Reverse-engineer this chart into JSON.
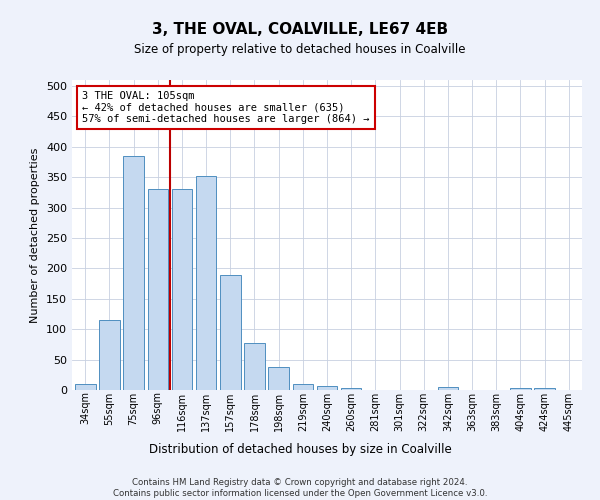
{
  "title": "3, THE OVAL, COALVILLE, LE67 4EB",
  "subtitle": "Size of property relative to detached houses in Coalville",
  "xlabel": "Distribution of detached houses by size in Coalville",
  "ylabel": "Number of detached properties",
  "bar_labels": [
    "34sqm",
    "55sqm",
    "75sqm",
    "96sqm",
    "116sqm",
    "137sqm",
    "157sqm",
    "178sqm",
    "198sqm",
    "219sqm",
    "240sqm",
    "260sqm",
    "281sqm",
    "301sqm",
    "322sqm",
    "342sqm",
    "363sqm",
    "383sqm",
    "404sqm",
    "424sqm",
    "445sqm"
  ],
  "bar_values": [
    10,
    115,
    385,
    330,
    330,
    352,
    190,
    77,
    38,
    10,
    7,
    4,
    0,
    0,
    0,
    5,
    0,
    0,
    4,
    4,
    0
  ],
  "bar_color": "#c5d9f0",
  "bar_edge_color": "#4f8fc0",
  "vline_color": "#bb0000",
  "annotation_text": "3 THE OVAL: 105sqm\n← 42% of detached houses are smaller (635)\n57% of semi-detached houses are larger (864) →",
  "annotation_box_color": "#ffffff",
  "annotation_box_edge_color": "#cc0000",
  "ylim": [
    0,
    510
  ],
  "yticks": [
    0,
    50,
    100,
    150,
    200,
    250,
    300,
    350,
    400,
    450,
    500
  ],
  "footnote": "Contains HM Land Registry data © Crown copyright and database right 2024.\nContains public sector information licensed under the Open Government Licence v3.0.",
  "bg_color": "#eef2fb",
  "plot_bg_color": "#ffffff",
  "grid_color": "#c8d0e0"
}
